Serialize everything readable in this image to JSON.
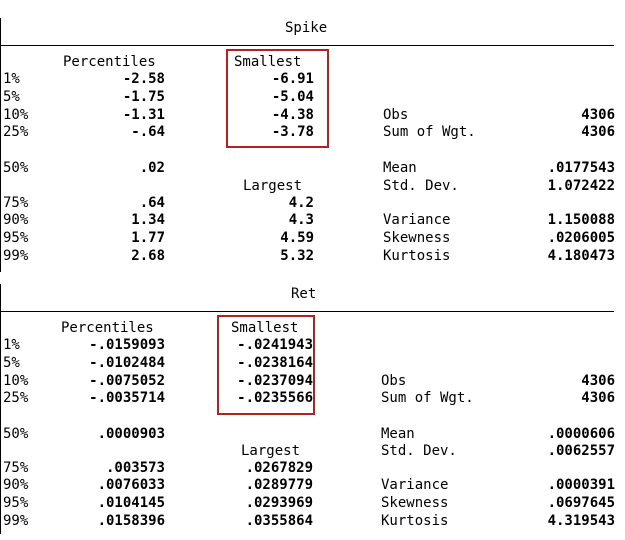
{
  "panels": [
    {
      "title": "Spike",
      "headers": {
        "percentiles": "Percentiles",
        "smallest": "Smallest",
        "largest": "Largest"
      },
      "rows": [
        {
          "pct": "1%",
          "percentile": "-2.58",
          "extreme": "-6.91"
        },
        {
          "pct": "5%",
          "percentile": "-1.75",
          "extreme": "-5.04"
        },
        {
          "pct": "10%",
          "percentile": "-1.31",
          "extreme": "-4.38"
        },
        {
          "pct": "25%",
          "percentile": "-.64",
          "extreme": "-3.78"
        },
        {
          "pct": "50%",
          "percentile": ".02",
          "extreme": ""
        },
        {
          "pct": "75%",
          "percentile": ".64",
          "extreme": "4.2"
        },
        {
          "pct": "90%",
          "percentile": "1.34",
          "extreme": "4.3"
        },
        {
          "pct": "95%",
          "percentile": "1.77",
          "extreme": "4.59"
        },
        {
          "pct": "99%",
          "percentile": "2.68",
          "extreme": "5.32"
        }
      ],
      "stats": [
        {
          "label": "Obs",
          "value": "4306"
        },
        {
          "label": "Sum of Wgt.",
          "value": "4306"
        },
        {
          "label": "Mean",
          "value": ".0177543"
        },
        {
          "label": "Std. Dev.",
          "value": "1.072422"
        },
        {
          "label": "Variance",
          "value": "1.150088"
        },
        {
          "label": "Skewness",
          "value": ".0206005"
        },
        {
          "label": "Kurtosis",
          "value": "4.180473"
        }
      ]
    },
    {
      "title": "Ret",
      "headers": {
        "percentiles": "Percentiles",
        "smallest": "Smallest",
        "largest": "Largest"
      },
      "rows": [
        {
          "pct": "1%",
          "percentile": "-.0159093",
          "extreme": "-.0241943"
        },
        {
          "pct": "5%",
          "percentile": "-.0102484",
          "extreme": "-.0238164"
        },
        {
          "pct": "10%",
          "percentile": "-.0075052",
          "extreme": "-.0237094"
        },
        {
          "pct": "25%",
          "percentile": "-.0035714",
          "extreme": "-.0235566"
        },
        {
          "pct": "50%",
          "percentile": ".0000903",
          "extreme": ""
        },
        {
          "pct": "75%",
          "percentile": ".003573",
          "extreme": ".0267829"
        },
        {
          "pct": "90%",
          "percentile": ".0076033",
          "extreme": ".0289779"
        },
        {
          "pct": "95%",
          "percentile": ".0104145",
          "extreme": ".0293969"
        },
        {
          "pct": "99%",
          "percentile": ".0158396",
          "extreme": ".0355864"
        }
      ],
      "stats": [
        {
          "label": "Obs",
          "value": "4306"
        },
        {
          "label": "Sum of Wgt.",
          "value": "4306"
        },
        {
          "label": "Mean",
          "value": ".0000606"
        },
        {
          "label": "Std. Dev.",
          "value": ".0062557"
        },
        {
          "label": "Variance",
          "value": ".0000391"
        },
        {
          "label": "Skewness",
          "value": ".0697645"
        },
        {
          "label": "Kurtosis",
          "value": "4.319543"
        }
      ]
    }
  ],
  "colors": {
    "highlight_box": "#b22222",
    "text": "#000000",
    "background": "#ffffff"
  }
}
